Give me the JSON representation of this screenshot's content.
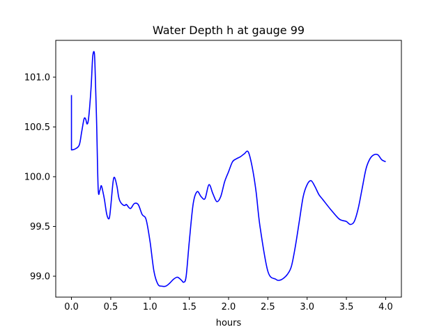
{
  "chart_data": {
    "type": "line",
    "title": "Water Depth h at gauge 99",
    "xlabel": "hours",
    "ylabel": "",
    "xlim": [
      -0.2,
      4.2
    ],
    "ylim": [
      98.79,
      101.37
    ],
    "xticks": [
      0.0,
      0.5,
      1.0,
      1.5,
      2.0,
      2.5,
      3.0,
      3.5,
      4.0
    ],
    "xtick_labels": [
      "0.0",
      "0.5",
      "1.0",
      "1.5",
      "2.0",
      "2.5",
      "3.0",
      "3.5",
      "4.0"
    ],
    "yticks": [
      99.0,
      99.5,
      100.0,
      100.5,
      101.0
    ],
    "ytick_labels": [
      "99.0",
      "99.5",
      "100.0",
      "100.5",
      "101.0"
    ],
    "grid": false,
    "legend": "none",
    "series": [
      {
        "color": "#0000ff",
        "x": [
          0.0,
          0.0,
          0.01,
          0.05,
          0.1,
          0.13,
          0.16,
          0.18,
          0.2,
          0.22,
          0.25,
          0.27,
          0.29,
          0.3,
          0.32,
          0.34,
          0.36,
          0.38,
          0.4,
          0.42,
          0.45,
          0.48,
          0.5,
          0.53,
          0.55,
          0.58,
          0.6,
          0.62,
          0.65,
          0.68,
          0.7,
          0.75,
          0.8,
          0.85,
          0.9,
          0.95,
          1.0,
          1.05,
          1.1,
          1.15,
          1.2,
          1.25,
          1.3,
          1.35,
          1.4,
          1.43,
          1.46,
          1.5,
          1.55,
          1.6,
          1.65,
          1.7,
          1.75,
          1.8,
          1.85,
          1.9,
          1.95,
          2.0,
          2.05,
          2.1,
          2.15,
          2.2,
          2.25,
          2.3,
          2.35,
          2.4,
          2.5,
          2.6,
          2.65,
          2.7,
          2.75,
          2.8,
          2.85,
          2.9,
          2.95,
          3.0,
          3.05,
          3.1,
          3.15,
          3.2,
          3.3,
          3.4,
          3.45,
          3.5,
          3.55,
          3.6,
          3.65,
          3.7,
          3.75,
          3.8,
          3.85,
          3.9,
          3.95,
          4.0
        ],
        "y": [
          100.82,
          100.27,
          100.27,
          100.28,
          100.32,
          100.45,
          100.58,
          100.58,
          100.53,
          100.6,
          100.9,
          101.2,
          101.25,
          101.1,
          100.55,
          99.88,
          99.86,
          99.91,
          99.85,
          99.77,
          99.62,
          99.58,
          99.7,
          99.95,
          99.99,
          99.9,
          99.8,
          99.75,
          99.72,
          99.71,
          99.72,
          99.68,
          99.73,
          99.72,
          99.62,
          99.57,
          99.35,
          99.05,
          98.92,
          98.9,
          98.9,
          98.93,
          98.97,
          98.99,
          98.96,
          98.94,
          99.0,
          99.35,
          99.73,
          99.85,
          99.8,
          99.78,
          99.92,
          99.83,
          99.75,
          99.8,
          99.95,
          100.05,
          100.15,
          100.18,
          100.2,
          100.23,
          100.25,
          100.1,
          99.85,
          99.5,
          99.05,
          98.97,
          98.96,
          98.98,
          99.02,
          99.1,
          99.3,
          99.55,
          99.8,
          99.92,
          99.96,
          99.9,
          99.82,
          99.77,
          99.67,
          99.58,
          99.56,
          99.55,
          99.52,
          99.55,
          99.68,
          99.88,
          100.08,
          100.18,
          100.22,
          100.22,
          100.17,
          100.15
        ]
      }
    ]
  }
}
